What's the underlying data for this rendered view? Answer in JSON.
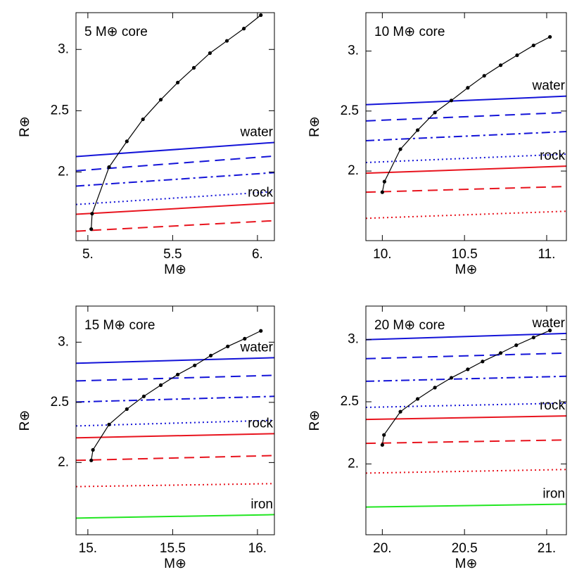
{
  "chart_data": [
    {
      "type": "line",
      "title": "5 M⊕ core",
      "xlabel": "M⊕",
      "ylabel": "R⊕",
      "xlim": [
        4.93,
        6.1
      ],
      "ylim": [
        1.44,
        3.3
      ],
      "xticks": [
        {
          "value": 5,
          "label": "5."
        },
        5.5,
        {
          "value": 6,
          "label": "6."
        }
      ],
      "yticks": [
        {
          "value": 2,
          "label": "2."
        },
        2.5,
        {
          "value": 3,
          "label": "3."
        }
      ],
      "series": [
        {
          "color": "#1414d8",
          "dash": "solid",
          "label": "water",
          "x": [
            4.93,
            6.1
          ],
          "values": [
            2.126,
            2.241
          ]
        },
        {
          "color": "#1414d8",
          "dash": "dashed",
          "x": [
            4.93,
            6.1
          ],
          "values": [
            2.01,
            2.13
          ]
        },
        {
          "color": "#1414d8",
          "dash": "dashdot",
          "x": [
            4.93,
            6.1
          ],
          "values": [
            1.885,
            1.995
          ]
        },
        {
          "color": "#1414d8",
          "dash": "dotted",
          "x": [
            4.93,
            6.1
          ],
          "values": [
            1.735,
            1.84
          ]
        },
        {
          "color": "#e8141e",
          "dash": "solid",
          "label": "rock",
          "x": [
            4.93,
            6.1
          ],
          "values": [
            1.655,
            1.747
          ]
        },
        {
          "color": "#e8141e",
          "dash": "dashed",
          "x": [
            4.93,
            6.1
          ],
          "values": [
            1.517,
            1.603
          ]
        },
        {
          "color": "#000000",
          "dash": "solid",
          "markers": true,
          "x": [
            5.02,
            5.025,
            5.125,
            5.23,
            5.325,
            5.43,
            5.53,
            5.625,
            5.72,
            5.82,
            5.92,
            6.02
          ],
          "values": [
            1.534,
            1.66,
            2.04,
            2.25,
            2.43,
            2.59,
            2.73,
            2.85,
            2.97,
            3.07,
            3.17,
            3.28
          ]
        }
      ]
    },
    {
      "type": "line",
      "title": "10 M⊕ core",
      "xlabel": "M⊕",
      "ylabel": "R⊕",
      "xlim": [
        9.9,
        11.12
      ],
      "ylim": [
        1.42,
        3.32
      ],
      "xticks": [
        {
          "value": 10,
          "label": "10."
        },
        10.5,
        {
          "value": 11,
          "label": "11."
        }
      ],
      "yticks": [
        {
          "value": 2,
          "label": "2."
        },
        2.5,
        {
          "value": 3,
          "label": "3."
        }
      ],
      "series": [
        {
          "color": "#1414d8",
          "dash": "solid",
          "label": "water",
          "x": [
            9.9,
            11.12
          ],
          "values": [
            2.553,
            2.624
          ]
        },
        {
          "color": "#1414d8",
          "dash": "dashed",
          "x": [
            9.9,
            11.12
          ],
          "values": [
            2.418,
            2.488
          ]
        },
        {
          "color": "#1414d8",
          "dash": "dashdot",
          "x": [
            9.9,
            11.12
          ],
          "values": [
            2.253,
            2.329
          ]
        },
        {
          "color": "#1414d8",
          "dash": "dotted",
          "x": [
            9.9,
            11.12
          ],
          "values": [
            2.071,
            2.141
          ]
        },
        {
          "color": "#e8141e",
          "dash": "solid",
          "label": "rock",
          "x": [
            9.9,
            11.12
          ],
          "values": [
            1.982,
            2.041
          ]
        },
        {
          "color": "#e8141e",
          "dash": "dashed",
          "x": [
            9.9,
            11.12
          ],
          "values": [
            1.824,
            1.871
          ]
        },
        {
          "color": "#e8141e",
          "dash": "dotted",
          "x": [
            9.9,
            11.12
          ],
          "values": [
            1.606,
            1.665
          ]
        },
        {
          "color": "#000000",
          "dash": "solid",
          "markers": true,
          "x": [
            10.0,
            10.013,
            10.11,
            10.215,
            10.32,
            10.42,
            10.52,
            10.62,
            10.72,
            10.82,
            10.92,
            11.02
          ],
          "values": [
            1.824,
            1.912,
            2.182,
            2.341,
            2.488,
            2.588,
            2.694,
            2.794,
            2.882,
            2.965,
            3.047,
            3.118
          ]
        }
      ]
    },
    {
      "type": "line",
      "title": "15 M⊕ core",
      "xlabel": "M⊕",
      "ylabel": "R⊕",
      "xlim": [
        14.93,
        16.1
      ],
      "ylim": [
        1.4,
        3.3
      ],
      "xticks": [
        {
          "value": 15,
          "label": "15."
        },
        15.5,
        {
          "value": 16,
          "label": "16."
        }
      ],
      "yticks": [
        {
          "value": 2,
          "label": "2."
        },
        2.5,
        {
          "value": 3,
          "label": "3."
        }
      ],
      "series": [
        {
          "color": "#1414d8",
          "dash": "solid",
          "label": "water",
          "x": [
            14.93,
            16.1
          ],
          "values": [
            2.825,
            2.871
          ]
        },
        {
          "color": "#1414d8",
          "dash": "dashed",
          "x": [
            14.93,
            16.1
          ],
          "values": [
            2.678,
            2.725
          ]
        },
        {
          "color": "#1414d8",
          "dash": "dashdot",
          "x": [
            14.93,
            16.1
          ],
          "values": [
            2.503,
            2.55
          ]
        },
        {
          "color": "#1414d8",
          "dash": "dotted",
          "x": [
            14.93,
            16.1
          ],
          "values": [
            2.304,
            2.351
          ]
        },
        {
          "color": "#e8141e",
          "dash": "solid",
          "label": "rock",
          "x": [
            14.93,
            16.1
          ],
          "values": [
            2.205,
            2.24
          ]
        },
        {
          "color": "#e8141e",
          "dash": "dashed",
          "x": [
            14.93,
            16.1
          ],
          "values": [
            2.018,
            2.058
          ]
        },
        {
          "color": "#e8141e",
          "dash": "dotted",
          "x": [
            14.93,
            16.1
          ],
          "values": [
            1.8,
            1.825
          ]
        },
        {
          "color": "#22e622",
          "dash": "solid",
          "label": "iron",
          "x": [
            14.93,
            16.1
          ],
          "values": [
            1.538,
            1.567
          ]
        },
        {
          "color": "#000000",
          "dash": "solid",
          "markers": true,
          "x": [
            15.02,
            15.03,
            15.125,
            15.23,
            15.33,
            15.43,
            15.53,
            15.63,
            15.725,
            15.825,
            15.925,
            16.02
          ],
          "values": [
            2.018,
            2.105,
            2.316,
            2.444,
            2.55,
            2.643,
            2.731,
            2.807,
            2.889,
            2.965,
            3.029,
            3.094
          ]
        }
      ]
    },
    {
      "type": "line",
      "title": "20 M⊕ core",
      "xlabel": "M⊕",
      "ylabel": "R⊕",
      "xlim": [
        19.9,
        21.12
      ],
      "ylim": [
        1.43,
        3.27
      ],
      "xticks": [
        {
          "value": 20,
          "label": "20."
        },
        20.5,
        {
          "value": 21,
          "label": "21."
        }
      ],
      "yticks": [
        {
          "value": 2,
          "label": "2."
        },
        2.5,
        {
          "value": 3,
          "label": "3."
        }
      ],
      "series": [
        {
          "color": "#1414d8",
          "dash": "solid",
          "label": "water",
          "x": [
            19.9,
            21.12
          ],
          "values": [
            3.0,
            3.05
          ]
        },
        {
          "color": "#1414d8",
          "dash": "dashed",
          "x": [
            19.9,
            21.12
          ],
          "values": [
            2.847,
            2.892
          ]
        },
        {
          "color": "#1414d8",
          "dash": "dashdot",
          "x": [
            19.9,
            21.12
          ],
          "values": [
            2.665,
            2.705
          ]
        },
        {
          "color": "#1414d8",
          "dash": "dotted",
          "x": [
            19.9,
            21.12
          ],
          "values": [
            2.455,
            2.489
          ]
        },
        {
          "color": "#e8141e",
          "dash": "solid",
          "label": "rock",
          "x": [
            19.9,
            21.12
          ],
          "values": [
            2.358,
            2.386
          ]
        },
        {
          "color": "#e8141e",
          "dash": "dashed",
          "x": [
            19.9,
            21.12
          ],
          "values": [
            2.165,
            2.193
          ]
        },
        {
          "color": "#e8141e",
          "dash": "dotted",
          "x": [
            19.9,
            21.12
          ],
          "values": [
            1.926,
            1.955
          ]
        },
        {
          "color": "#22e622",
          "dash": "solid",
          "label": "iron",
          "x": [
            19.9,
            21.12
          ],
          "values": [
            1.653,
            1.676
          ]
        },
        {
          "color": "#000000",
          "dash": "solid",
          "markers": true,
          "x": [
            20.0,
            20.01,
            20.11,
            20.215,
            20.32,
            20.42,
            20.52,
            20.61,
            20.72,
            20.815,
            20.92,
            21.02
          ],
          "values": [
            2.153,
            2.233,
            2.42,
            2.523,
            2.614,
            2.693,
            2.761,
            2.824,
            2.892,
            2.955,
            3.017,
            3.074
          ]
        }
      ]
    }
  ]
}
